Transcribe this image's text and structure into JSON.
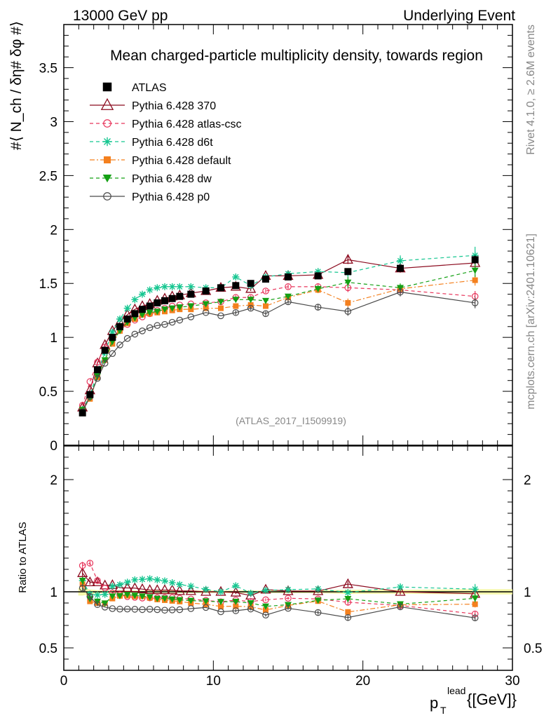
{
  "header": {
    "left": "13000 GeV pp",
    "right": "Underlying Event"
  },
  "side_labels": {
    "rivet": "Rivet 4.1.0, ≥ 2.6M events",
    "mcplots": "mcplots.cern.ch [arXiv:2401.10621]"
  },
  "chart_data": {
    "type": "line",
    "title": "Mean charged-particle multiplicity density, towards region",
    "analysis_tag": "(ATLAS_2017_I1509919)",
    "xlabel": "p_T^lead [[GeV]]",
    "ylabel": "#⟨ N_ch / δη# δφ #⟩",
    "ratio_ylabel": "Ratio to ATLAS",
    "xlim": [
      0,
      30
    ],
    "ylim": [
      0,
      3.9
    ],
    "ratio_ylim": [
      0.3,
      2.3
    ],
    "x_ticks": [
      "0",
      "10",
      "20",
      "30"
    ],
    "y_ticks": [
      "0",
      "0.5",
      "1",
      "1.5",
      "2",
      "2.5",
      "3",
      "3.5"
    ],
    "ratio_ticks": [
      "0.5",
      "1",
      "2"
    ],
    "x": [
      1.25,
      1.75,
      2.25,
      2.75,
      3.25,
      3.75,
      4.25,
      4.75,
      5.25,
      5.75,
      6.25,
      6.75,
      7.25,
      7.75,
      8.5,
      9.5,
      10.5,
      11.5,
      12.5,
      13.5,
      15,
      17,
      19,
      22.5,
      27.5
    ],
    "series": [
      {
        "name": "ATLAS",
        "color": "#000000",
        "dash": "",
        "marker": "square",
        "values": [
          0.3,
          0.47,
          0.7,
          0.88,
          1.0,
          1.1,
          1.17,
          1.22,
          1.26,
          1.29,
          1.32,
          1.34,
          1.36,
          1.38,
          1.4,
          1.43,
          1.46,
          1.48,
          1.5,
          1.54,
          1.56,
          1.57,
          1.61,
          1.64,
          1.72
        ],
        "errors": [
          0.01,
          0.01,
          0.01,
          0.01,
          0.01,
          0.01,
          0.01,
          0.01,
          0.01,
          0.01,
          0.01,
          0.01,
          0.01,
          0.01,
          0.01,
          0.01,
          0.01,
          0.01,
          0.015,
          0.015,
          0.02,
          0.02,
          0.03,
          0.03,
          0.04
        ]
      },
      {
        "name": "Pythia 6.428 370",
        "color": "#8b0a1e",
        "dash": "",
        "marker": "triangle-open",
        "values": [
          0.35,
          0.51,
          0.76,
          0.93,
          1.06,
          1.14,
          1.21,
          1.26,
          1.29,
          1.31,
          1.34,
          1.36,
          1.38,
          1.39,
          1.41,
          1.43,
          1.46,
          1.47,
          1.45,
          1.57,
          1.57,
          1.58,
          1.72,
          1.64,
          1.69
        ],
        "errors": [
          0.01,
          0.01,
          0.01,
          0.01,
          0.01,
          0.01,
          0.01,
          0.01,
          0.01,
          0.01,
          0.01,
          0.01,
          0.01,
          0.01,
          0.01,
          0.01,
          0.01,
          0.02,
          0.02,
          0.02,
          0.02,
          0.03,
          0.04,
          0.04,
          0.06
        ]
      },
      {
        "name": "Pythia 6.428 atlas-csc",
        "color": "#e8365c",
        "dash": "5,4",
        "marker": "circle-open",
        "values": [
          0.37,
          0.59,
          0.77,
          0.91,
          0.99,
          1.07,
          1.12,
          1.16,
          1.19,
          1.22,
          1.25,
          1.27,
          1.29,
          1.3,
          1.31,
          1.32,
          1.33,
          1.37,
          1.37,
          1.43,
          1.47,
          1.47,
          1.46,
          1.44,
          1.38
        ],
        "errors": [
          0.01,
          0.01,
          0.01,
          0.01,
          0.01,
          0.01,
          0.01,
          0.01,
          0.01,
          0.01,
          0.01,
          0.01,
          0.01,
          0.01,
          0.01,
          0.01,
          0.01,
          0.02,
          0.02,
          0.02,
          0.02,
          0.03,
          0.04,
          0.04,
          0.05
        ]
      },
      {
        "name": "Pythia 6.428 d6t",
        "color": "#15c690",
        "dash": "5,4",
        "marker": "star",
        "values": [
          0.33,
          0.46,
          0.68,
          0.86,
          1.05,
          1.17,
          1.27,
          1.35,
          1.4,
          1.44,
          1.46,
          1.47,
          1.47,
          1.47,
          1.47,
          1.46,
          1.46,
          1.56,
          1.48,
          1.56,
          1.59,
          1.61,
          1.6,
          1.71,
          1.76
        ],
        "errors": [
          0.01,
          0.01,
          0.01,
          0.01,
          0.01,
          0.01,
          0.01,
          0.01,
          0.01,
          0.01,
          0.01,
          0.01,
          0.01,
          0.01,
          0.01,
          0.01,
          0.01,
          0.02,
          0.02,
          0.02,
          0.02,
          0.03,
          0.04,
          0.05,
          0.08
        ]
      },
      {
        "name": "Pythia 6.428 default",
        "color": "#f4801e",
        "dash": "7,3,2,3",
        "marker": "square-small",
        "values": [
          0.32,
          0.43,
          0.63,
          0.79,
          0.94,
          1.06,
          1.13,
          1.17,
          1.21,
          1.22,
          1.23,
          1.24,
          1.25,
          1.26,
          1.26,
          1.27,
          1.27,
          1.29,
          1.3,
          1.29,
          1.37,
          1.44,
          1.32,
          1.45,
          1.53
        ],
        "errors": [
          0.01,
          0.01,
          0.01,
          0.01,
          0.01,
          0.01,
          0.01,
          0.01,
          0.01,
          0.01,
          0.01,
          0.01,
          0.01,
          0.01,
          0.01,
          0.01,
          0.01,
          0.02,
          0.02,
          0.02,
          0.02,
          0.03,
          0.04,
          0.04,
          0.05
        ]
      },
      {
        "name": "Pythia 6.428 dw",
        "color": "#14a014",
        "dash": "5,4",
        "marker": "triangle-down",
        "values": [
          0.33,
          0.44,
          0.64,
          0.79,
          0.96,
          1.06,
          1.14,
          1.18,
          1.21,
          1.23,
          1.24,
          1.26,
          1.27,
          1.28,
          1.29,
          1.31,
          1.33,
          1.35,
          1.35,
          1.34,
          1.38,
          1.45,
          1.51,
          1.46,
          1.62
        ],
        "errors": [
          0.01,
          0.01,
          0.01,
          0.01,
          0.01,
          0.01,
          0.01,
          0.01,
          0.01,
          0.01,
          0.01,
          0.01,
          0.01,
          0.01,
          0.01,
          0.01,
          0.01,
          0.02,
          0.02,
          0.02,
          0.02,
          0.03,
          0.05,
          0.04,
          0.06
        ]
      },
      {
        "name": "Pythia 6.428 p0",
        "color": "#4a4a4a",
        "dash": "",
        "marker": "circle-open",
        "values": [
          0.31,
          0.45,
          0.62,
          0.76,
          0.85,
          0.93,
          0.99,
          1.03,
          1.06,
          1.09,
          1.11,
          1.12,
          1.14,
          1.16,
          1.19,
          1.23,
          1.2,
          1.23,
          1.27,
          1.22,
          1.33,
          1.28,
          1.24,
          1.42,
          1.32
        ],
        "errors": [
          0.01,
          0.01,
          0.01,
          0.01,
          0.01,
          0.01,
          0.01,
          0.01,
          0.01,
          0.01,
          0.01,
          0.01,
          0.01,
          0.01,
          0.01,
          0.01,
          0.01,
          0.02,
          0.02,
          0.02,
          0.02,
          0.03,
          0.04,
          0.04,
          0.05
        ]
      }
    ]
  }
}
